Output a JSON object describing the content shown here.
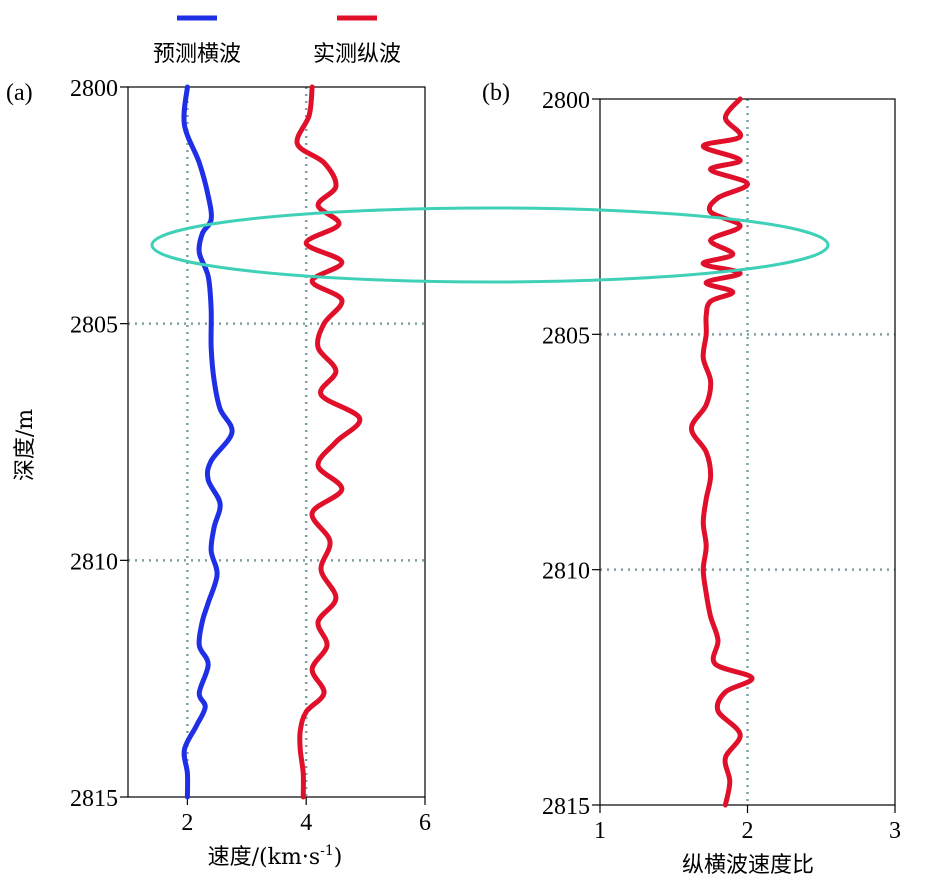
{
  "legend": {
    "items": [
      {
        "label": "预测横波",
        "color": "#1f2fe6"
      },
      {
        "label": "实测纵波",
        "color": "#e0102a"
      }
    ]
  },
  "ylabel": "深度/m",
  "chart_data": [
    {
      "panel": "(a)",
      "type": "line",
      "xlabel_main": "速度/(km·s",
      "xlabel_sup": "-1",
      "xlabel_end": ")",
      "xlim": [
        1,
        6
      ],
      "ylim": [
        2800,
        2815
      ],
      "xticks": [
        "2",
        "4",
        "6"
      ],
      "xtick_values": [
        2,
        4,
        6
      ],
      "yticks": [
        "2800",
        "2805",
        "2810",
        "2815"
      ],
      "ytick_values": [
        2800,
        2805,
        2810,
        2815
      ],
      "grid": {
        "x": [
          2,
          4
        ],
        "y": [
          2805,
          2810
        ]
      },
      "series": [
        {
          "name": "预测横波",
          "color": "#1f2fe6",
          "depth": [
            2800,
            2800.8,
            2801.6,
            2802.3,
            2802.8,
            2803.1,
            2803.5,
            2804.0,
            2804.7,
            2805.5,
            2806.2,
            2806.8,
            2807.3,
            2807.9,
            2808.3,
            2808.8,
            2809.3,
            2809.8,
            2810.3,
            2810.9,
            2811.3,
            2811.8,
            2812.2,
            2812.8,
            2813.1,
            2813.5,
            2814.0,
            2814.5,
            2815
          ],
          "values": [
            2.0,
            1.95,
            2.2,
            2.35,
            2.4,
            2.25,
            2.2,
            2.35,
            2.4,
            2.4,
            2.45,
            2.55,
            2.75,
            2.4,
            2.35,
            2.55,
            2.45,
            2.4,
            2.5,
            2.35,
            2.25,
            2.2,
            2.35,
            2.2,
            2.3,
            2.15,
            1.95,
            2.0,
            2.0
          ]
        },
        {
          "name": "实测纵波",
          "color": "#e0102a",
          "depth": [
            2800,
            2800.6,
            2801.2,
            2801.6,
            2802.1,
            2802.5,
            2802.9,
            2803.3,
            2803.7,
            2804.1,
            2804.5,
            2805.0,
            2805.5,
            2806.0,
            2806.5,
            2807.0,
            2807.5,
            2808.0,
            2808.5,
            2809.0,
            2809.6,
            2810.2,
            2810.8,
            2811.3,
            2811.8,
            2812.3,
            2812.8,
            2813.2,
            2813.6,
            2814.0,
            2814.5,
            2815
          ],
          "values": [
            4.1,
            4.05,
            3.85,
            4.3,
            4.5,
            4.2,
            4.55,
            4.0,
            4.6,
            4.1,
            4.6,
            4.3,
            4.2,
            4.5,
            4.25,
            4.9,
            4.5,
            4.2,
            4.6,
            4.1,
            4.4,
            4.25,
            4.5,
            4.2,
            4.35,
            4.1,
            4.3,
            4.0,
            3.9,
            3.9,
            3.95,
            3.95
          ]
        }
      ]
    },
    {
      "panel": "(b)",
      "type": "line",
      "xlabel": "纵横波速度比",
      "xlim": [
        1,
        3
      ],
      "ylim": [
        2800,
        2815
      ],
      "xticks": [
        "1",
        "2",
        "3"
      ],
      "xtick_values": [
        1,
        2,
        3
      ],
      "yticks": [
        "2800",
        "2805",
        "2810",
        "2815"
      ],
      "ytick_values": [
        2800,
        2805,
        2810,
        2815
      ],
      "grid": {
        "x": [
          2
        ],
        "y": [
          2805,
          2810
        ]
      },
      "series": [
        {
          "color": "#e0102a",
          "depth": [
            2800,
            2800.4,
            2800.8,
            2801.0,
            2801.3,
            2801.5,
            2801.8,
            2802.1,
            2802.4,
            2802.7,
            2803.0,
            2803.3,
            2803.5,
            2803.7,
            2803.9,
            2804.1,
            2804.3,
            2804.6,
            2805.0,
            2805.5,
            2806.0,
            2806.5,
            2807.0,
            2807.5,
            2808.0,
            2808.5,
            2809.0,
            2809.5,
            2810.0,
            2810.5,
            2811.0,
            2811.5,
            2812.0,
            2812.3,
            2812.6,
            2813.0,
            2813.5,
            2814.0,
            2814.5,
            2815
          ],
          "values": [
            1.95,
            1.85,
            1.95,
            1.7,
            1.95,
            1.75,
            2.0,
            1.8,
            1.75,
            1.95,
            1.75,
            1.9,
            1.7,
            1.95,
            1.72,
            1.9,
            1.75,
            1.72,
            1.72,
            1.7,
            1.75,
            1.72,
            1.62,
            1.72,
            1.75,
            1.72,
            1.7,
            1.72,
            1.7,
            1.72,
            1.75,
            1.8,
            1.78,
            2.03,
            1.85,
            1.8,
            1.95,
            1.85,
            1.88,
            1.85
          ]
        }
      ]
    }
  ]
}
